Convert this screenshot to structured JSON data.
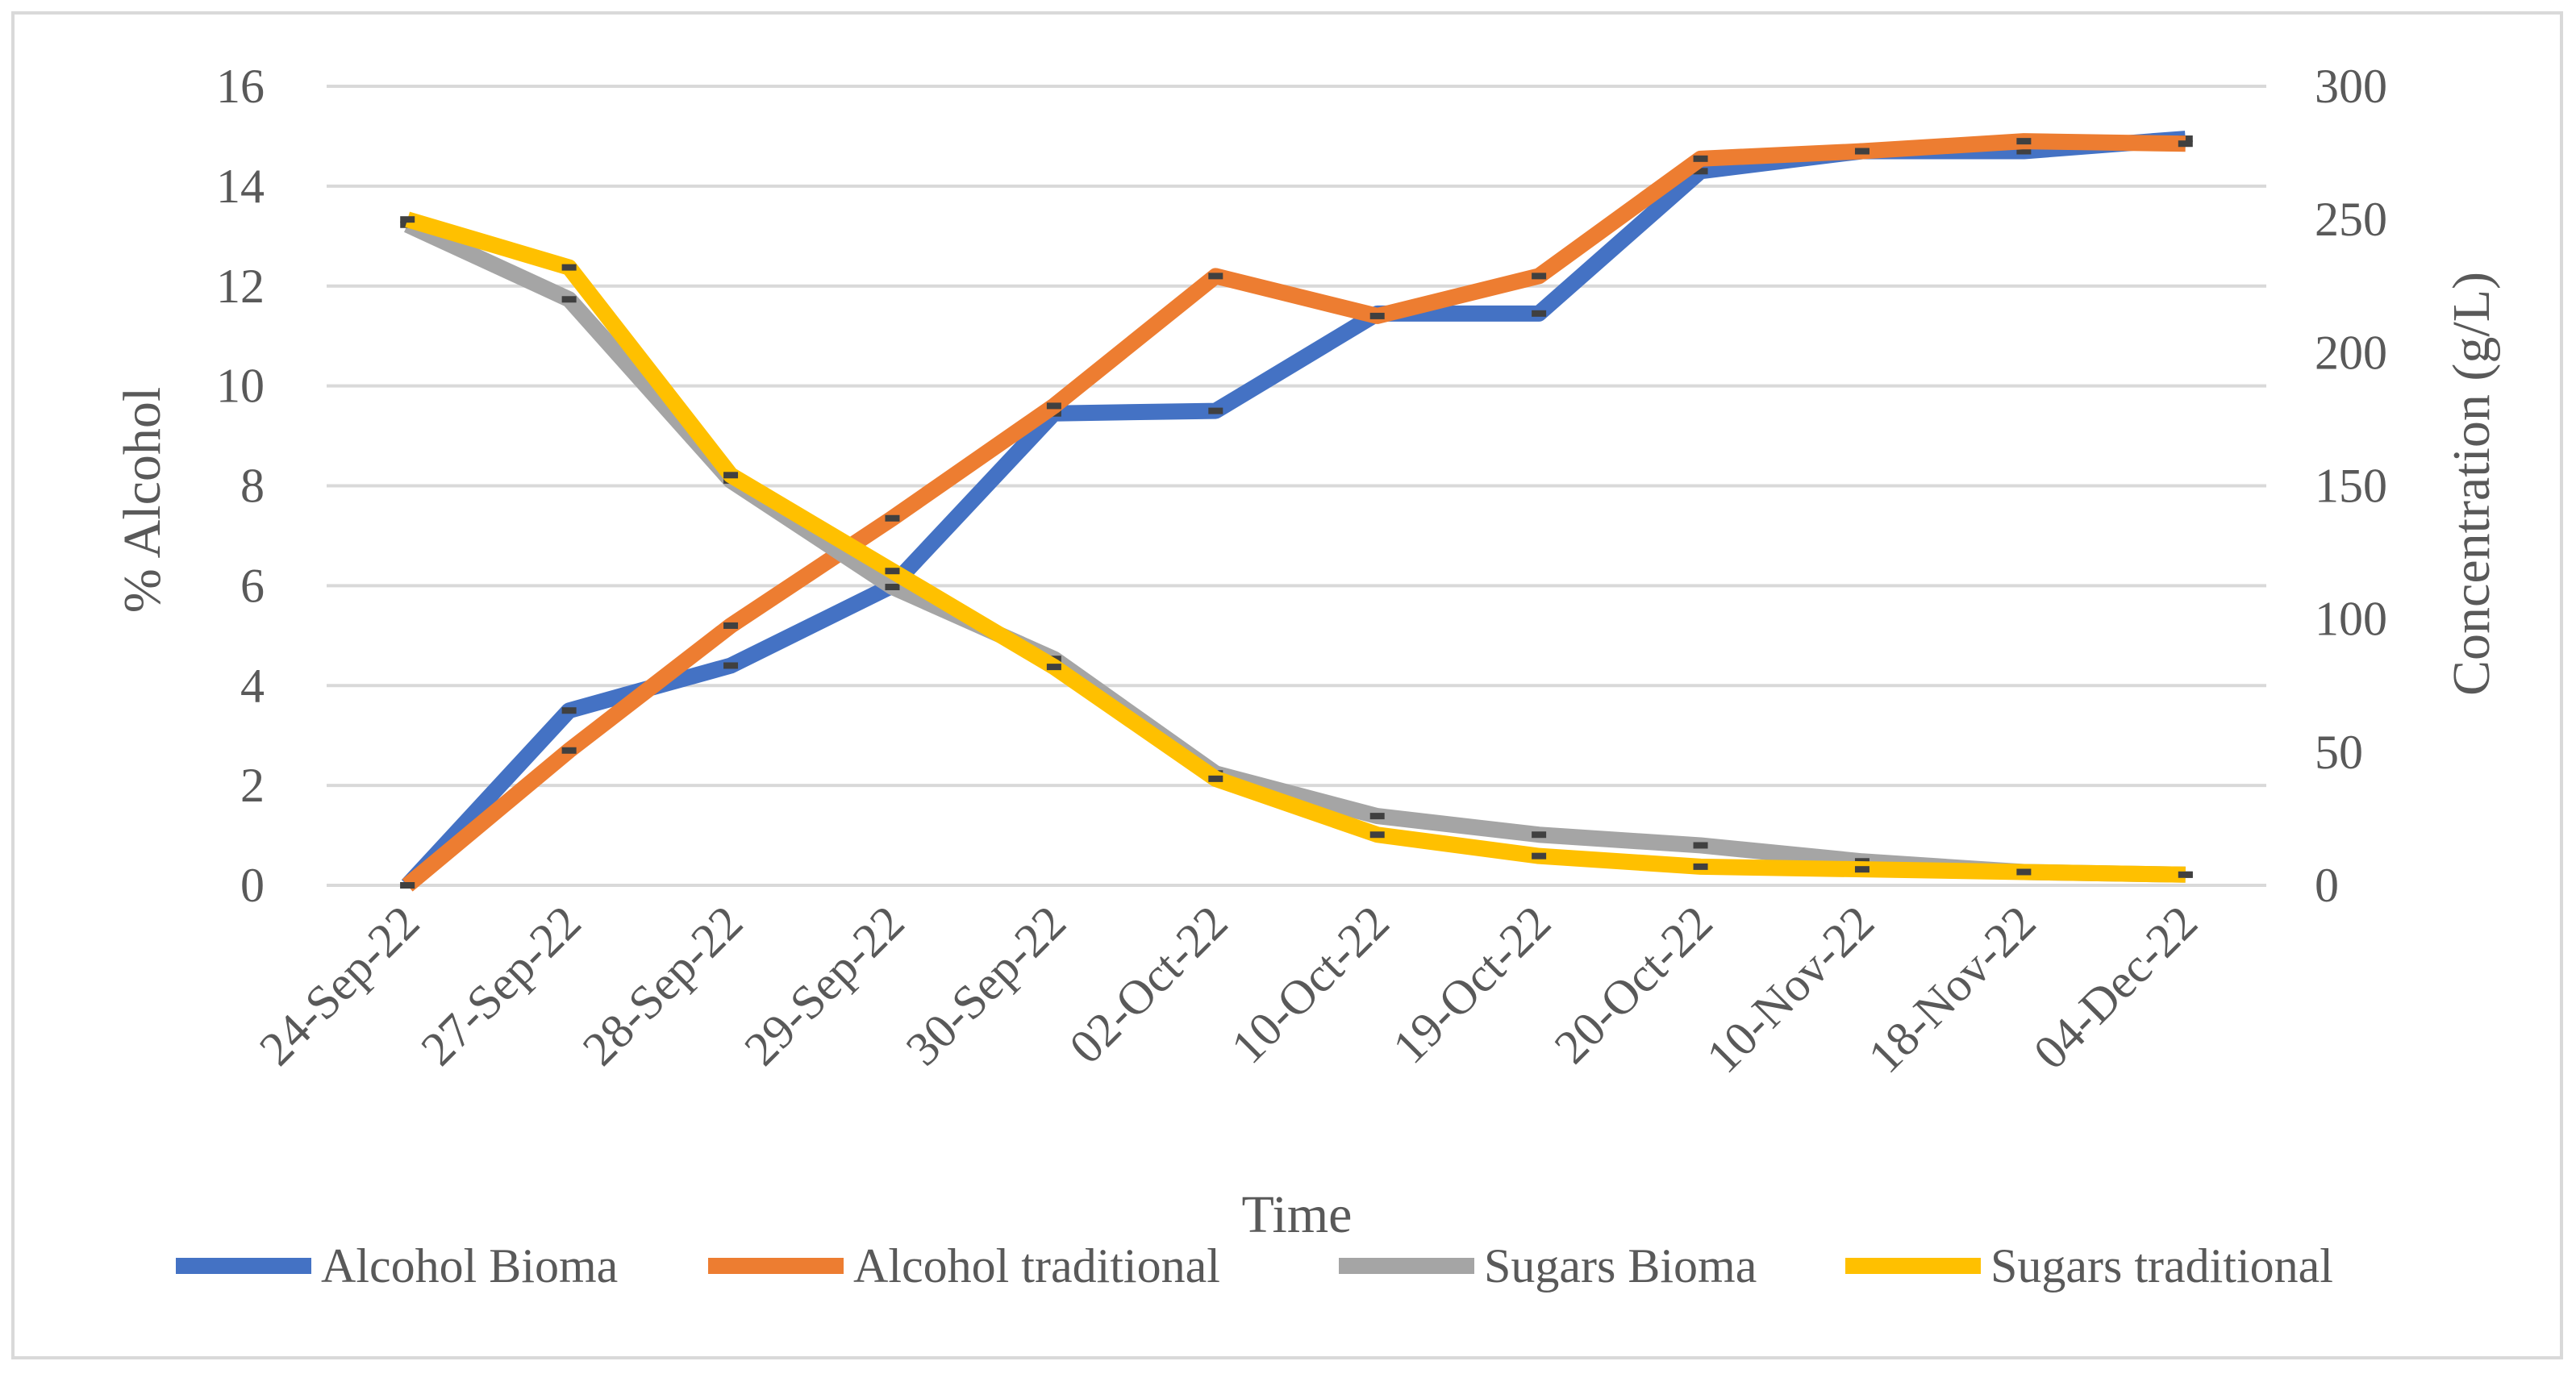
{
  "chart_data": {
    "type": "line",
    "title": "",
    "categories": [
      "24-Sep-22",
      "27-Sep-22",
      "28-Sep-22",
      "29-Sep-22",
      "30-Sep-22",
      "02-Oct-22",
      "10-Oct-22",
      "19-Oct-22",
      "20-Oct-22",
      "10-Nov-22",
      "18-Nov-22",
      "04-Dec-22"
    ],
    "xlabel": "Time",
    "ylabel_left": "% Alcohol",
    "ylabel_right": "Concentration (g/L)",
    "ylim_left": [
      0,
      16
    ],
    "ylim_right": [
      0,
      300
    ],
    "yticks_left": [
      "0",
      "2",
      "4",
      "6",
      "8",
      "10",
      "12",
      "14",
      "16"
    ],
    "yticks_right": [
      "0",
      "50",
      "100",
      "150",
      "200",
      "250",
      "300"
    ],
    "grid": true,
    "legend_position": "bottom",
    "series": [
      {
        "name": "Alcohol Bioma",
        "axis": "left",
        "color": "#4472c4",
        "values": [
          0,
          3.5,
          4.4,
          6.0,
          9.45,
          9.5,
          11.45,
          11.45,
          14.3,
          14.7,
          14.7,
          14.95
        ]
      },
      {
        "name": "Alcohol traditional",
        "axis": "left",
        "color": "#ed7d31",
        "values": [
          0,
          2.7,
          5.2,
          7.35,
          9.6,
          12.2,
          11.4,
          12.2,
          14.55,
          14.7,
          14.9,
          14.85
        ]
      },
      {
        "name": "Sugars Bioma",
        "axis": "right",
        "color": "#a5a5a5",
        "values": [
          248,
          220,
          152,
          112,
          85,
          42,
          26,
          19,
          15,
          9,
          5,
          4
        ]
      },
      {
        "name": "Sugars traditional",
        "axis": "right",
        "color": "#ffc000",
        "values": [
          250,
          232,
          154,
          118,
          82,
          40,
          19,
          11,
          7,
          6,
          5,
          4
        ]
      }
    ]
  }
}
